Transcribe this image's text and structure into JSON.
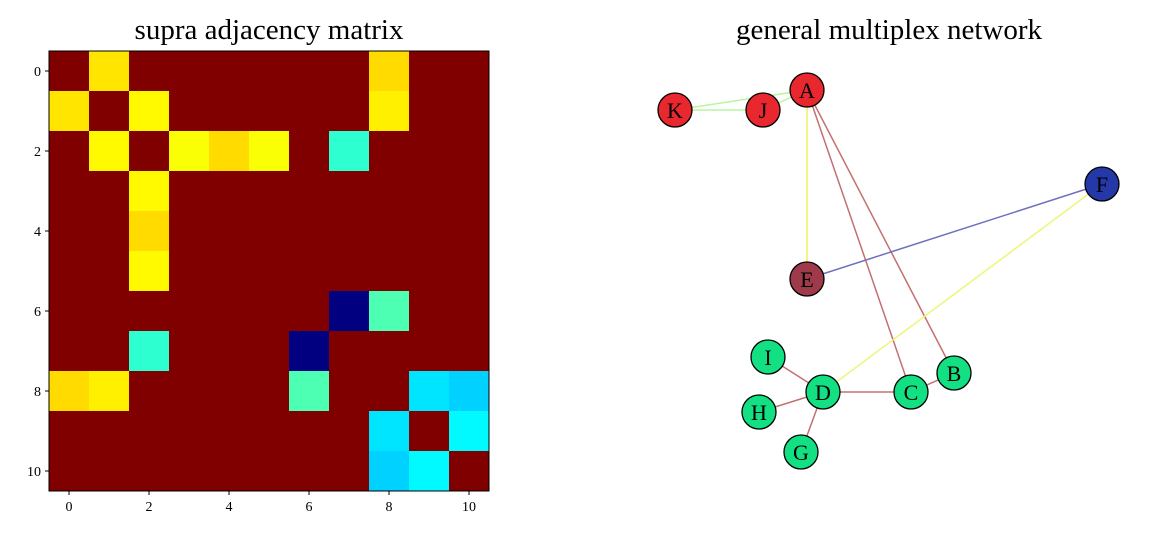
{
  "chart_data": [
    {
      "type": "heatmap",
      "title": "supra adjacency matrix",
      "colormap": "jet",
      "xticks": [
        0,
        2,
        4,
        6,
        8,
        10
      ],
      "yticks": [
        0,
        2,
        4,
        6,
        8,
        10
      ],
      "xlim": [
        -0.5,
        10.5
      ],
      "ylim": [
        10.5,
        -0.5
      ],
      "grid": false,
      "values": [
        [
          1,
          0.65,
          1,
          1,
          1,
          1,
          1,
          1,
          0.66,
          1,
          1
        ],
        [
          0.65,
          1,
          0.63,
          1,
          1,
          1,
          1,
          1,
          0.64,
          1,
          1
        ],
        [
          1,
          0.63,
          1,
          0.62,
          0.66,
          0.62,
          1,
          0.42,
          1,
          1,
          1
        ],
        [
          1,
          1,
          0.63,
          1,
          1,
          1,
          1,
          1,
          1,
          1,
          1
        ],
        [
          1,
          1,
          0.66,
          1,
          1,
          1,
          1,
          1,
          1,
          1,
          1
        ],
        [
          1,
          1,
          0.63,
          1,
          1,
          1,
          1,
          1,
          1,
          1,
          1
        ],
        [
          1,
          1,
          1,
          1,
          1,
          1,
          1,
          0.0,
          0.45,
          1,
          1
        ],
        [
          1,
          1,
          0.42,
          1,
          1,
          1,
          0.0,
          1,
          1,
          1,
          1
        ],
        [
          0.66,
          0.64,
          1,
          1,
          1,
          1,
          0.45,
          1,
          1,
          0.35,
          0.33
        ],
        [
          1,
          1,
          1,
          1,
          1,
          1,
          1,
          1,
          0.35,
          1,
          0.37
        ],
        [
          1,
          1,
          1,
          1,
          1,
          1,
          1,
          1,
          0.33,
          0.37,
          1
        ]
      ]
    },
    {
      "type": "network",
      "title": "general multiplex network",
      "nodes": [
        {
          "id": "A",
          "color": "#e8282e"
        },
        {
          "id": "K",
          "color": "#e8282e"
        },
        {
          "id": "J",
          "color": "#e8282e"
        },
        {
          "id": "F",
          "color": "#2538a8"
        },
        {
          "id": "E",
          "color": "#9e3a4a"
        },
        {
          "id": "I",
          "color": "#12e083"
        },
        {
          "id": "D",
          "color": "#12e083"
        },
        {
          "id": "H",
          "color": "#12e083"
        },
        {
          "id": "G",
          "color": "#12e083"
        },
        {
          "id": "C",
          "color": "#12e083"
        },
        {
          "id": "B",
          "color": "#12e083"
        }
      ],
      "edges": [
        {
          "source": "K",
          "target": "J",
          "color": "#b8f5a0"
        },
        {
          "source": "K",
          "target": "A",
          "color": "#b8f5a0"
        },
        {
          "source": "J",
          "target": "A",
          "color": "#b8f5a0"
        },
        {
          "source": "A",
          "target": "E",
          "color": "#f2f25a"
        },
        {
          "source": "A",
          "target": "C",
          "color": "#c47070"
        },
        {
          "source": "A",
          "target": "B",
          "color": "#c47070"
        },
        {
          "source": "E",
          "target": "F",
          "color": "#7070c0"
        },
        {
          "source": "F",
          "target": "D",
          "color": "#eef57a"
        },
        {
          "source": "I",
          "target": "D",
          "color": "#c47070"
        },
        {
          "source": "H",
          "target": "D",
          "color": "#c47070"
        },
        {
          "source": "G",
          "target": "D",
          "color": "#c47070"
        },
        {
          "source": "D",
          "target": "C",
          "color": "#c47070"
        },
        {
          "source": "C",
          "target": "B",
          "color": "#c47070"
        }
      ]
    }
  ]
}
